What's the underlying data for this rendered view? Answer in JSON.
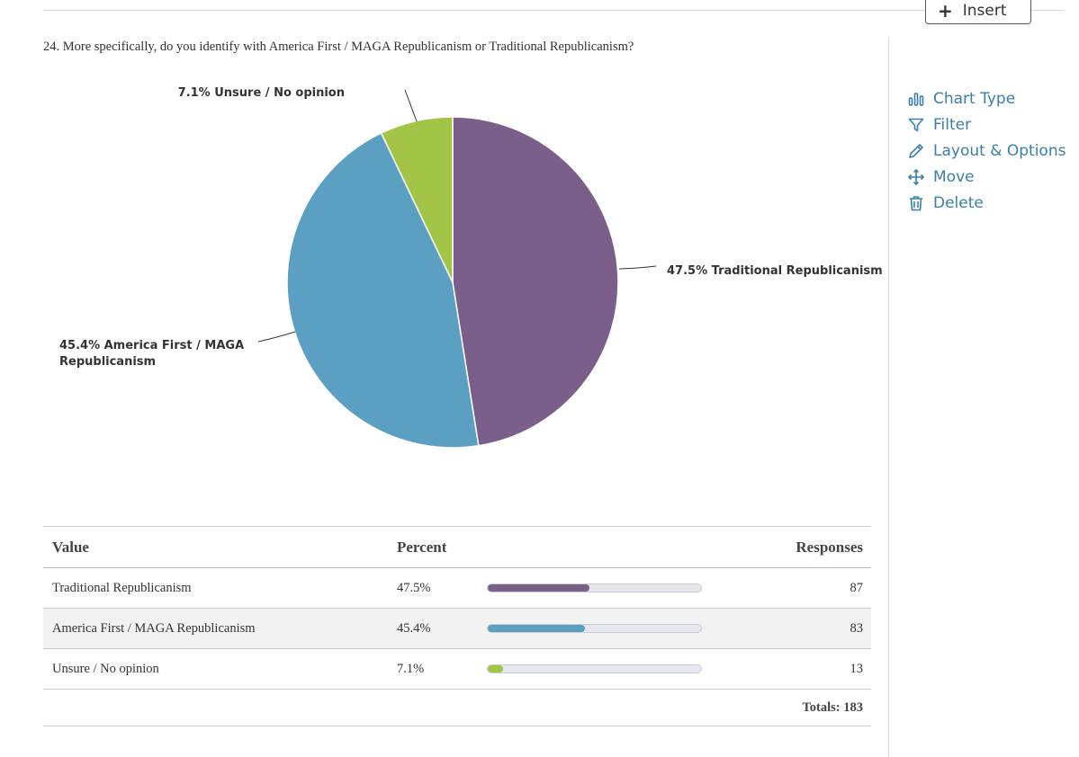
{
  "toolbar": {
    "insert_label": "Insert",
    "insert_icon": "plus-icon"
  },
  "question": {
    "text": "24. More specifically, do you identify with America First / MAGA Republicanism or Traditional Republicanism?"
  },
  "side_menu": {
    "items": [
      {
        "label": "Chart Type",
        "icon": "bar-chart-icon"
      },
      {
        "label": "Filter",
        "icon": "filter-icon"
      },
      {
        "label": "Layout & Options",
        "icon": "pencil-icon"
      },
      {
        "label": "Move",
        "icon": "move-icon"
      },
      {
        "label": "Delete",
        "icon": "trash-icon"
      }
    ],
    "color": "#3b7fa8"
  },
  "chart_data": {
    "type": "pie",
    "categories": [
      "Traditional Republicanism",
      "America First / MAGA Republicanism",
      "Unsure / No opinion"
    ],
    "values": [
      47.5,
      45.4,
      7.1
    ],
    "labels": [
      "47.5% Traditional Republicanism",
      "45.4% America First / MAGA Republicanism",
      "7.1% Unsure / No opinion"
    ],
    "colors": [
      "#7a5f8a",
      "#5ba0c2",
      "#a2c548"
    ],
    "start": "12 o'clock",
    "direction": "clockwise"
  },
  "table": {
    "headers": {
      "value": "Value",
      "percent": "Percent",
      "responses": "Responses"
    },
    "rows": [
      {
        "value": "Traditional Republicanism",
        "percent": "47.5%",
        "fraction": 0.475,
        "responses": "87",
        "color": "#7a5f8a"
      },
      {
        "value": "America First / MAGA Republicanism",
        "percent": "45.4%",
        "fraction": 0.454,
        "responses": "83",
        "color": "#5ba0c2"
      },
      {
        "value": "Unsure / No opinion",
        "percent": "7.1%",
        "fraction": 0.071,
        "responses": "13",
        "color": "#a2c548"
      }
    ],
    "totals": "Totals: 183"
  }
}
